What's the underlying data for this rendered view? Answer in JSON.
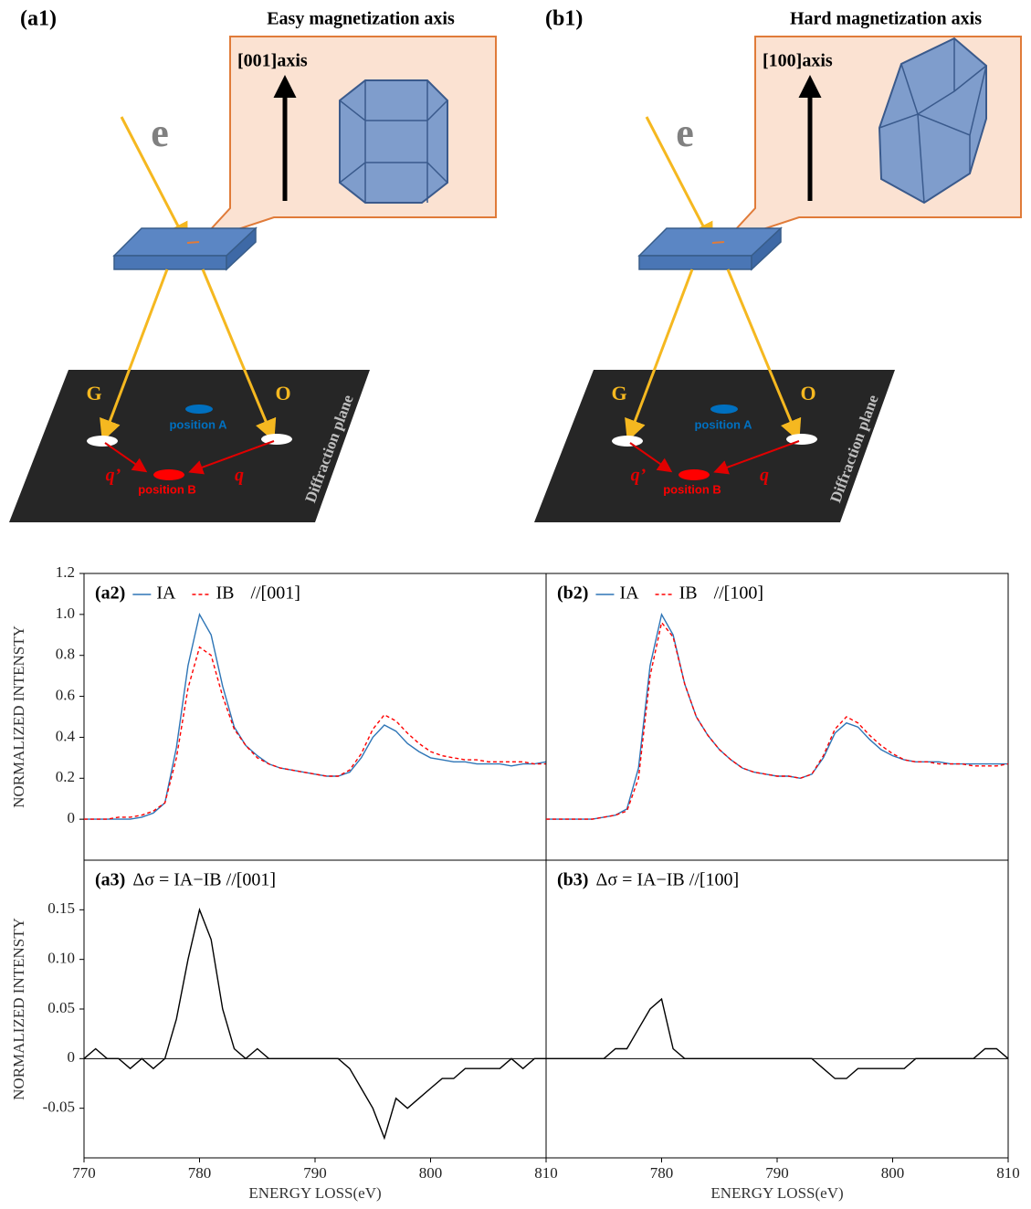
{
  "diagrams": [
    {
      "label": "(a1)",
      "title": "Easy magnetization axis",
      "axis": "[001]axis",
      "beam": "e",
      "spots": [
        "G",
        "O"
      ],
      "position_a": "position A",
      "position_b": "position B",
      "q_prime": "q’",
      "q": "q",
      "plane": "Diffraction plane"
    },
    {
      "label": "(b1)",
      "title": "Hard magnetization axis",
      "axis": "[100]axis",
      "beam": "e",
      "spots": [
        "G",
        "O"
      ],
      "position_a": "position A",
      "position_b": "position B",
      "q_prime": "q’",
      "q": "q",
      "plane": "Diffraction plane"
    }
  ],
  "chart_data": [
    {
      "type": "line",
      "label": "(a2)",
      "annotation": "//[001]",
      "ylabel": "NORMALIZED INTENSTY",
      "x": [
        770,
        771,
        772,
        773,
        774,
        775,
        776,
        777,
        778,
        779,
        780,
        781,
        782,
        783,
        784,
        785,
        786,
        787,
        788,
        789,
        790,
        791,
        792,
        793,
        794,
        795,
        796,
        797,
        798,
        799,
        800,
        801,
        802,
        803,
        804,
        805,
        806,
        807,
        808,
        809,
        810
      ],
      "xlim": [
        770,
        810
      ],
      "ylim": [
        -0.2,
        1.2
      ],
      "yticks": [
        0,
        0.2,
        0.4,
        0.6,
        0.8,
        {
          "value": 1,
          "label": "1.0"
        },
        1.2
      ],
      "series": [
        {
          "name": "IA",
          "color": "#2e75b6",
          "style": "solid",
          "values": [
            0,
            0,
            0,
            0,
            0,
            0.01,
            0.03,
            0.08,
            0.35,
            0.75,
            1.0,
            0.9,
            0.65,
            0.45,
            0.36,
            0.31,
            0.27,
            0.25,
            0.24,
            0.23,
            0.22,
            0.21,
            0.21,
            0.23,
            0.3,
            0.4,
            0.46,
            0.43,
            0.37,
            0.33,
            0.3,
            0.29,
            0.28,
            0.28,
            0.27,
            0.27,
            0.27,
            0.26,
            0.27,
            0.27,
            0.28
          ]
        },
        {
          "name": "IB",
          "color": "#ff0000",
          "style": "dashed",
          "values": [
            0,
            0,
            0,
            0.01,
            0.01,
            0.02,
            0.04,
            0.08,
            0.3,
            0.64,
            0.84,
            0.8,
            0.6,
            0.44,
            0.36,
            0.3,
            0.27,
            0.25,
            0.24,
            0.23,
            0.22,
            0.21,
            0.21,
            0.24,
            0.32,
            0.44,
            0.51,
            0.48,
            0.42,
            0.37,
            0.33,
            0.31,
            0.3,
            0.29,
            0.29,
            0.28,
            0.28,
            0.28,
            0.28,
            0.27,
            0.27
          ]
        }
      ]
    },
    {
      "type": "line",
      "label": "(b2)",
      "annotation": "//[100]",
      "x": [
        770,
        771,
        772,
        773,
        774,
        775,
        776,
        777,
        778,
        779,
        780,
        781,
        782,
        783,
        784,
        785,
        786,
        787,
        788,
        789,
        790,
        791,
        792,
        793,
        794,
        795,
        796,
        797,
        798,
        799,
        800,
        801,
        802,
        803,
        804,
        805,
        806,
        807,
        808,
        809,
        810
      ],
      "xlim": [
        770,
        810
      ],
      "ylim": [
        -0.2,
        1.2
      ],
      "series": [
        {
          "name": "IA",
          "color": "#2e75b6",
          "style": "solid",
          "values": [
            0,
            0,
            0,
            0,
            0,
            0.01,
            0.02,
            0.05,
            0.25,
            0.75,
            1.0,
            0.9,
            0.66,
            0.5,
            0.41,
            0.34,
            0.29,
            0.25,
            0.23,
            0.22,
            0.21,
            0.21,
            0.2,
            0.22,
            0.3,
            0.42,
            0.47,
            0.45,
            0.39,
            0.34,
            0.31,
            0.29,
            0.28,
            0.28,
            0.28,
            0.27,
            0.27,
            0.27,
            0.27,
            0.27,
            0.27
          ]
        },
        {
          "name": "IB",
          "color": "#ff0000",
          "style": "dashed",
          "values": [
            0,
            0,
            0,
            0,
            0,
            0.01,
            0.02,
            0.04,
            0.2,
            0.7,
            0.96,
            0.89,
            0.66,
            0.5,
            0.41,
            0.34,
            0.29,
            0.25,
            0.23,
            0.22,
            0.21,
            0.21,
            0.2,
            0.22,
            0.31,
            0.44,
            0.5,
            0.47,
            0.41,
            0.36,
            0.32,
            0.29,
            0.28,
            0.28,
            0.27,
            0.27,
            0.27,
            0.26,
            0.26,
            0.26,
            0.27
          ]
        }
      ]
    },
    {
      "type": "line",
      "label": "(a3)",
      "annotation": "Δσ = IA−IB //[001]",
      "ylabel": "NORMALIZED INTENSTY",
      "xlabel": "ENERGY LOSS(eV)",
      "x": [
        770,
        771,
        772,
        773,
        774,
        775,
        776,
        777,
        778,
        779,
        780,
        781,
        782,
        783,
        784,
        785,
        786,
        787,
        788,
        789,
        790,
        791,
        792,
        793,
        794,
        795,
        796,
        797,
        798,
        799,
        800,
        801,
        802,
        803,
        804,
        805,
        806,
        807,
        808,
        809,
        810
      ],
      "xlim": [
        770,
        810
      ],
      "xticks": [
        770,
        780,
        790,
        800,
        810
      ],
      "ylim": [
        -0.1,
        0.2
      ],
      "yticks": [
        -0.05,
        0,
        0.05,
        {
          "value": 0.1,
          "label": "0.10"
        },
        0.15
      ],
      "series": [
        {
          "color": "#000000",
          "style": "solid",
          "values": [
            0,
            0.01,
            0,
            0,
            -0.01,
            0,
            -0.01,
            0,
            0.04,
            0.1,
            0.15,
            0.12,
            0.05,
            0.01,
            0,
            0.01,
            0,
            0,
            0,
            0,
            0,
            0,
            0,
            -0.01,
            -0.03,
            -0.05,
            -0.08,
            -0.04,
            -0.05,
            -0.04,
            -0.03,
            -0.02,
            -0.02,
            -0.01,
            -0.01,
            -0.01,
            -0.01,
            0,
            -0.01,
            0,
            0
          ]
        }
      ]
    },
    {
      "type": "line",
      "label": "(b3)",
      "annotation": "Δσ = IA−IB //[100]",
      "xlabel": "ENERGY LOSS(eV)",
      "x": [
        770,
        771,
        772,
        773,
        774,
        775,
        776,
        777,
        778,
        779,
        780,
        781,
        782,
        783,
        784,
        785,
        786,
        787,
        788,
        789,
        790,
        791,
        792,
        793,
        794,
        795,
        796,
        797,
        798,
        799,
        800,
        801,
        802,
        803,
        804,
        805,
        806,
        807,
        808,
        809,
        810
      ],
      "xlim": [
        770,
        810
      ],
      "xticks": [
        780,
        790,
        800,
        810
      ],
      "ylim": [
        -0.1,
        0.2
      ],
      "series": [
        {
          "color": "#000000",
          "style": "solid",
          "values": [
            0,
            0,
            0,
            0,
            0,
            0,
            0.01,
            0.01,
            0.03,
            0.05,
            0.06,
            0.01,
            0,
            0,
            0,
            0,
            0,
            0,
            0,
            0,
            0,
            0,
            0,
            0,
            -0.01,
            -0.02,
            -0.02,
            -0.01,
            -0.01,
            -0.01,
            -0.01,
            -0.01,
            0,
            0,
            0,
            0,
            0,
            0,
            0.01,
            0.01,
            0
          ]
        }
      ]
    }
  ]
}
